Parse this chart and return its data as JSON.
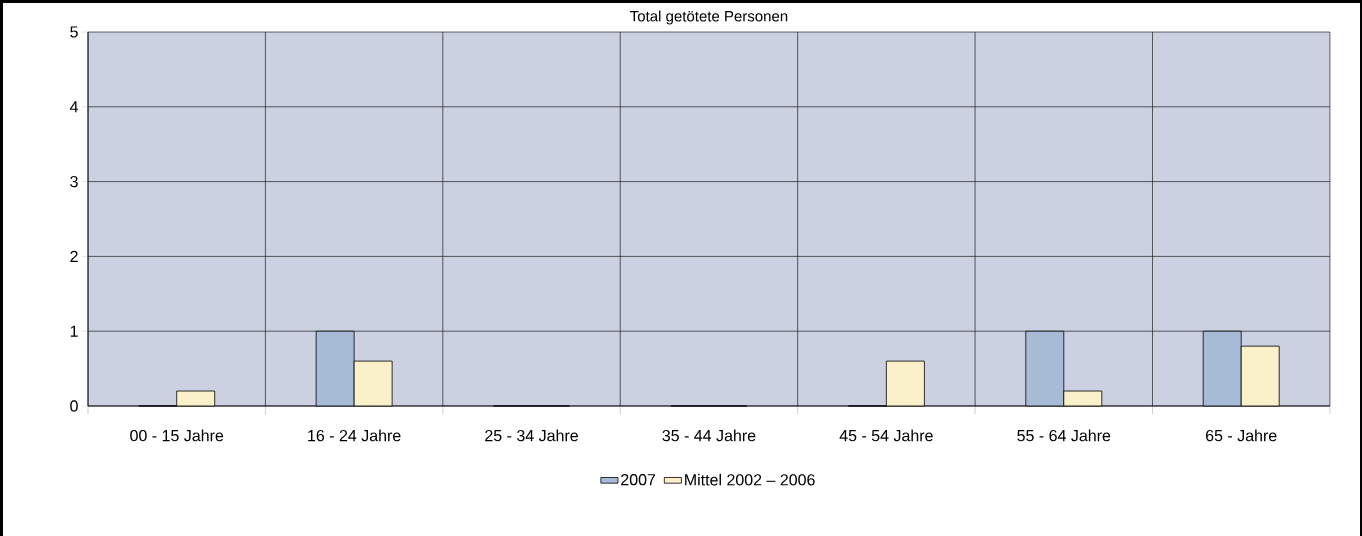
{
  "chart_data": {
    "type": "bar",
    "title": "Total getötete Personen",
    "categories": [
      "00 - 15 Jahre",
      "16 - 24 Jahre",
      "25 - 34 Jahre",
      "35 - 44 Jahre",
      "45 - 54 Jahre",
      "55 - 64 Jahre",
      "65 - Jahre"
    ],
    "series": [
      {
        "name": "2007",
        "color": "#a7bbd7",
        "values": [
          0,
          1,
          0,
          0,
          0,
          1,
          1
        ]
      },
      {
        "name": "Mittel 2002 – 2006",
        "color": "#faf1cb",
        "values": [
          0.2,
          0.6,
          0,
          0,
          0.6,
          0.2,
          0.8
        ]
      }
    ],
    "ylim": [
      0,
      5
    ],
    "yticks": [
      0,
      1,
      2,
      3,
      4,
      5
    ],
    "grid": true,
    "legend": "bottom"
  }
}
